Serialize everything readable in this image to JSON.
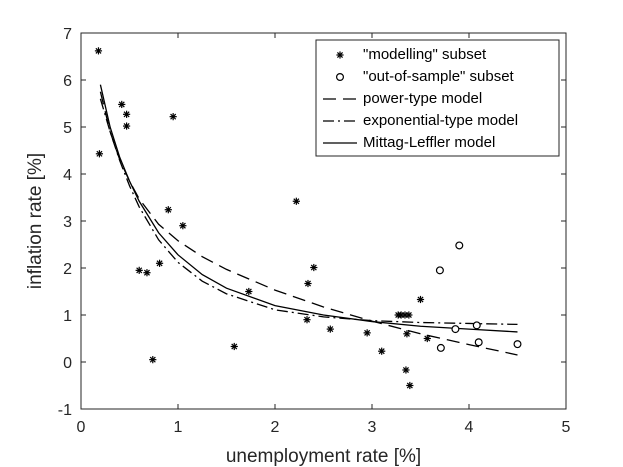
{
  "chart_data": {
    "type": "scatter",
    "title": "",
    "xlabel": "unemployment rate [%]",
    "ylabel": "inflation rate [%]",
    "xlim": [
      0,
      5
    ],
    "ylim": [
      -1,
      7
    ],
    "xticks": [
      0,
      1,
      2,
      3,
      4,
      5
    ],
    "yticks": [
      -1,
      0,
      1,
      2,
      3,
      4,
      5,
      6,
      7
    ],
    "grid": false,
    "legend_position": "top-right",
    "legend": [
      "\"modelling\" subset",
      "\"out-of-sample\" subset",
      "power-type model",
      "exponential-type model",
      "Mittag-Leffler model"
    ],
    "series": [
      {
        "name": "\"modelling\" subset",
        "kind": "points",
        "marker": "asterisk",
        "points": [
          [
            0.18,
            6.62
          ],
          [
            0.19,
            4.43
          ],
          [
            0.42,
            5.48
          ],
          [
            0.47,
            5.27
          ],
          [
            0.47,
            5.02
          ],
          [
            0.95,
            5.22
          ],
          [
            0.9,
            3.24
          ],
          [
            1.05,
            2.9
          ],
          [
            0.6,
            1.95
          ],
          [
            0.68,
            1.9
          ],
          [
            0.81,
            2.1
          ],
          [
            0.74,
            0.05
          ],
          [
            1.58,
            0.33
          ],
          [
            1.73,
            1.5
          ],
          [
            2.22,
            3.42
          ],
          [
            2.34,
            1.67
          ],
          [
            2.4,
            2.01
          ],
          [
            2.33,
            0.9
          ],
          [
            2.57,
            0.7
          ],
          [
            2.95,
            0.62
          ],
          [
            3.1,
            0.23
          ],
          [
            3.27,
            1.0
          ],
          [
            3.3,
            1.0
          ],
          [
            3.34,
            1.0
          ],
          [
            3.38,
            1.0
          ],
          [
            3.36,
            0.6
          ],
          [
            3.35,
            -0.17
          ],
          [
            3.39,
            -0.5
          ],
          [
            3.5,
            1.33
          ],
          [
            3.57,
            0.5
          ]
        ]
      },
      {
        "name": "\"out-of-sample\" subset",
        "kind": "points",
        "marker": "circle",
        "points": [
          [
            3.7,
            1.95
          ],
          [
            3.9,
            2.48
          ],
          [
            3.71,
            0.3
          ],
          [
            3.86,
            0.7
          ],
          [
            4.08,
            0.78
          ],
          [
            4.1,
            0.42
          ],
          [
            4.5,
            0.38
          ]
        ]
      },
      {
        "name": "power-type model",
        "kind": "line",
        "dash": "long-dash",
        "x": [
          0.2,
          0.3,
          0.4,
          0.5,
          0.6,
          0.8,
          1.0,
          1.25,
          1.5,
          2.0,
          2.5,
          3.0,
          3.5,
          4.0,
          4.5
        ],
        "y": [
          5.75,
          4.9,
          4.3,
          3.85,
          3.47,
          2.93,
          2.58,
          2.24,
          1.97,
          1.53,
          1.17,
          0.87,
          0.6,
          0.37,
          0.15
        ]
      },
      {
        "name": "exponential-type model",
        "kind": "line",
        "dash": "dash-dot",
        "x": [
          0.2,
          0.3,
          0.4,
          0.5,
          0.6,
          0.8,
          1.0,
          1.25,
          1.5,
          2.0,
          2.5,
          3.0,
          3.5,
          4.0,
          4.5
        ],
        "y": [
          5.6,
          4.9,
          4.28,
          3.75,
          3.3,
          2.6,
          2.12,
          1.72,
          1.45,
          1.11,
          0.96,
          0.88,
          0.84,
          0.82,
          0.8
        ]
      },
      {
        "name": "Mittag-Leffler model",
        "kind": "line",
        "dash": "solid",
        "x": [
          0.2,
          0.3,
          0.4,
          0.5,
          0.6,
          0.8,
          1.0,
          1.25,
          1.5,
          2.0,
          2.5,
          3.0,
          3.5,
          4.0,
          4.5
        ],
        "y": [
          5.9,
          5.0,
          4.35,
          3.85,
          3.42,
          2.75,
          2.28,
          1.86,
          1.57,
          1.2,
          1.0,
          0.86,
          0.76,
          0.7,
          0.64
        ]
      }
    ]
  }
}
